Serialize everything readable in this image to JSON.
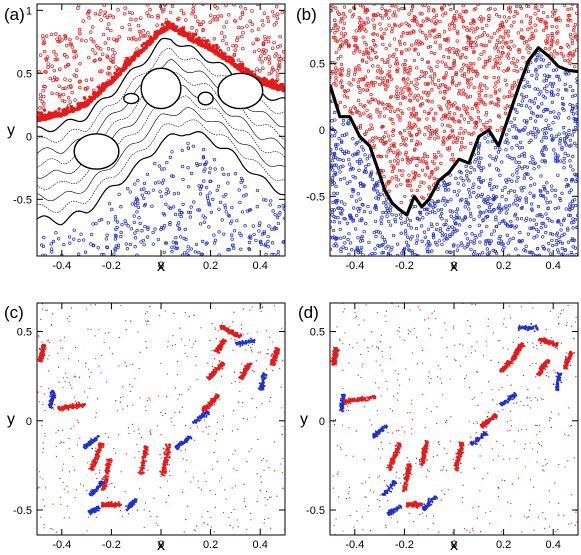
{
  "colors": {
    "red_series": "#e51a1a",
    "blue_series": "#1f2fd1",
    "black_curve": "#000000",
    "axis": "#000000"
  },
  "chart_data": [
    {
      "id": "a",
      "panel_label": "(a)",
      "type": "scatter",
      "xlabel": "x",
      "ylabel": "y",
      "xlim": [
        -0.5,
        0.5
      ],
      "ylim": [
        -0.95,
        1.05
      ],
      "xticks": [
        -0.4,
        -0.2,
        0,
        0.2,
        0.4
      ],
      "xtick_labels": [
        "-0.4",
        "-0.2",
        "0",
        "0.2",
        "0.4"
      ],
      "yticks": [
        -0.5,
        0,
        0.5,
        1
      ],
      "ytick_labels": [
        "-0.5",
        "0",
        "0.5",
        "1"
      ],
      "grid": false,
      "boundary_upper": {
        "x": [
          -0.5,
          -0.4,
          -0.3,
          -0.2,
          -0.1,
          0.0,
          0.04,
          0.1,
          0.2,
          0.3,
          0.4,
          0.5
        ],
        "y": [
          0.12,
          0.16,
          0.24,
          0.42,
          0.62,
          0.82,
          0.86,
          0.78,
          0.68,
          0.55,
          0.42,
          0.35
        ]
      },
      "boundary_lower": {
        "x": [
          -0.5,
          -0.4,
          -0.3,
          -0.2,
          -0.1,
          0.0,
          0.1,
          0.2,
          0.3,
          0.4,
          0.5
        ],
        "y": [
          -0.72,
          -0.74,
          -0.66,
          -0.48,
          -0.32,
          -0.12,
          -0.02,
          -0.08,
          -0.22,
          -0.4,
          -0.52
        ]
      },
      "islands": [
        {
          "cx": -0.26,
          "cy": -0.12,
          "rx": 0.09,
          "ry": 0.14
        },
        {
          "cx": 0.0,
          "cy": 0.38,
          "rx": 0.08,
          "ry": 0.16
        },
        {
          "cx": 0.32,
          "cy": 0.36,
          "rx": 0.09,
          "ry": 0.14
        },
        {
          "cx": -0.12,
          "cy": 0.3,
          "rx": 0.03,
          "ry": 0.04
        },
        {
          "cx": 0.18,
          "cy": 0.3,
          "rx": 0.03,
          "ry": 0.05
        }
      ],
      "series": [
        {
          "color": "#e51a1a",
          "region": "above"
        },
        {
          "color": "#1f2fd1",
          "region": "below"
        }
      ]
    },
    {
      "id": "b",
      "panel_label": "(b)",
      "type": "scatter",
      "xlabel": "x",
      "ylabel": "",
      "xlim": [
        -0.5,
        0.5
      ],
      "ylim": [
        -0.95,
        0.95
      ],
      "xticks": [
        -0.4,
        -0.2,
        0,
        0.2,
        0.4
      ],
      "xtick_labels": [
        "-0.4",
        "-0.2",
        "0",
        "0.2",
        "0.4"
      ],
      "yticks": [
        -0.5,
        0,
        0.5
      ],
      "ytick_labels": [
        "-0.5",
        "0",
        "0.5"
      ],
      "grid": false,
      "boundary": {
        "x": [
          -0.5,
          -0.46,
          -0.42,
          -0.38,
          -0.34,
          -0.31,
          -0.28,
          -0.25,
          -0.22,
          -0.19,
          -0.16,
          -0.13,
          -0.1,
          -0.06,
          -0.02,
          0.02,
          0.06,
          0.1,
          0.14,
          0.18,
          0.22,
          0.26,
          0.3,
          0.34,
          0.38,
          0.42,
          0.46,
          0.5
        ],
        "y": [
          0.34,
          0.1,
          0.1,
          -0.05,
          -0.12,
          -0.28,
          -0.45,
          -0.55,
          -0.6,
          -0.64,
          -0.5,
          -0.58,
          -0.52,
          -0.38,
          -0.32,
          -0.22,
          -0.25,
          -0.05,
          0.0,
          -0.12,
          0.1,
          0.32,
          0.52,
          0.62,
          0.56,
          0.48,
          0.45,
          0.44
        ]
      },
      "series": [
        {
          "color": "#e51a1a",
          "region": "above"
        },
        {
          "color": "#1f2fd1",
          "region": "below"
        }
      ]
    },
    {
      "id": "c",
      "panel_label": "(c)",
      "type": "scatter",
      "xlabel": "x",
      "ylabel": "y",
      "xlim": [
        -0.5,
        0.5
      ],
      "ylim": [
        -0.64,
        0.66
      ],
      "xticks": [
        -0.4,
        -0.2,
        0,
        0.2,
        0.4
      ],
      "xtick_labels": [
        "-0.4",
        "-0.2",
        "0",
        "0.2",
        "0.4"
      ],
      "yticks": [
        -0.5,
        0,
        0.5
      ],
      "ytick_labels": [
        "-0.5",
        "0",
        "0.5"
      ],
      "grid": false,
      "lobes": [
        {
          "cx": -0.48,
          "cy": 0.38,
          "len": 0.05,
          "angle": 80,
          "color": "#e51a1a"
        },
        {
          "cx": -0.44,
          "cy": 0.12,
          "len": 0.05,
          "angle": 80,
          "color": "#1f2fd1"
        },
        {
          "cx": -0.36,
          "cy": 0.08,
          "len": 0.07,
          "angle": 10,
          "color": "#e51a1a"
        },
        {
          "cx": -0.28,
          "cy": -0.12,
          "len": 0.05,
          "angle": 40,
          "color": "#1f2fd1"
        },
        {
          "cx": -0.26,
          "cy": -0.2,
          "len": 0.08,
          "angle": 70,
          "color": "#e51a1a"
        },
        {
          "cx": -0.22,
          "cy": -0.3,
          "len": 0.09,
          "angle": 80,
          "color": "#e51a1a"
        },
        {
          "cx": -0.26,
          "cy": -0.38,
          "len": 0.05,
          "angle": 50,
          "color": "#1f2fd1"
        },
        {
          "cx": -0.2,
          "cy": -0.47,
          "len": 0.05,
          "angle": 0,
          "color": "#e51a1a"
        },
        {
          "cx": -0.27,
          "cy": -0.5,
          "len": 0.03,
          "angle": 30,
          "color": "#1f2fd1"
        },
        {
          "cx": -0.12,
          "cy": -0.47,
          "len": 0.04,
          "angle": 50,
          "color": "#1f2fd1"
        },
        {
          "cx": -0.07,
          "cy": -0.22,
          "len": 0.08,
          "angle": 80,
          "color": "#e51a1a"
        },
        {
          "cx": 0.02,
          "cy": -0.22,
          "len": 0.09,
          "angle": 80,
          "color": "#e51a1a"
        },
        {
          "cx": 0.09,
          "cy": -0.12,
          "len": 0.05,
          "angle": 40,
          "color": "#1f2fd1"
        },
        {
          "cx": 0.16,
          "cy": 0.02,
          "len": 0.05,
          "angle": 40,
          "color": "#1f2fd1"
        },
        {
          "cx": 0.2,
          "cy": 0.1,
          "len": 0.06,
          "angle": 50,
          "color": "#e51a1a"
        },
        {
          "cx": 0.22,
          "cy": 0.28,
          "len": 0.06,
          "angle": 50,
          "color": "#e51a1a"
        },
        {
          "cx": 0.24,
          "cy": 0.42,
          "len": 0.04,
          "angle": 60,
          "color": "#e51a1a"
        },
        {
          "cx": 0.28,
          "cy": 0.5,
          "len": 0.06,
          "angle": -30,
          "color": "#e51a1a"
        },
        {
          "cx": 0.34,
          "cy": 0.44,
          "len": 0.05,
          "angle": 10,
          "color": "#1f2fd1"
        },
        {
          "cx": 0.34,
          "cy": 0.28,
          "len": 0.05,
          "angle": 60,
          "color": "#e51a1a"
        },
        {
          "cx": 0.41,
          "cy": 0.22,
          "len": 0.05,
          "angle": 80,
          "color": "#1f2fd1"
        },
        {
          "cx": 0.46,
          "cy": 0.36,
          "len": 0.05,
          "angle": 70,
          "color": "#e51a1a"
        }
      ]
    },
    {
      "id": "d",
      "panel_label": "(d)",
      "type": "scatter",
      "xlabel": "x",
      "ylabel": "y",
      "xlim": [
        -0.5,
        0.5
      ],
      "ylim": [
        -0.64,
        0.66
      ],
      "xticks": [
        -0.4,
        -0.2,
        0,
        0.2,
        0.4
      ],
      "xtick_labels": [
        "-0.4",
        "-0.2",
        "0",
        "0.2",
        "0.4"
      ],
      "yticks": [
        -0.5,
        0,
        0.5
      ],
      "ytick_labels": [
        "-0.5",
        "0",
        "0.5"
      ],
      "grid": false,
      "lobes": [
        {
          "cx": -0.48,
          "cy": 0.36,
          "len": 0.05,
          "angle": 80,
          "color": "#e51a1a"
        },
        {
          "cx": -0.45,
          "cy": 0.1,
          "len": 0.05,
          "angle": 80,
          "color": "#1f2fd1"
        },
        {
          "cx": -0.38,
          "cy": 0.12,
          "len": 0.08,
          "angle": 10,
          "color": "#e51a1a"
        },
        {
          "cx": -0.3,
          "cy": -0.06,
          "len": 0.05,
          "angle": 40,
          "color": "#1f2fd1"
        },
        {
          "cx": -0.24,
          "cy": -0.2,
          "len": 0.08,
          "angle": 70,
          "color": "#e51a1a"
        },
        {
          "cx": -0.19,
          "cy": -0.32,
          "len": 0.08,
          "angle": 80,
          "color": "#e51a1a"
        },
        {
          "cx": -0.26,
          "cy": -0.38,
          "len": 0.05,
          "angle": 50,
          "color": "#1f2fd1"
        },
        {
          "cx": -0.16,
          "cy": -0.47,
          "len": 0.04,
          "angle": 0,
          "color": "#e51a1a"
        },
        {
          "cx": -0.24,
          "cy": -0.5,
          "len": 0.04,
          "angle": 30,
          "color": "#1f2fd1"
        },
        {
          "cx": -0.1,
          "cy": -0.46,
          "len": 0.05,
          "angle": 50,
          "color": "#1f2fd1"
        },
        {
          "cx": -0.12,
          "cy": -0.18,
          "len": 0.07,
          "angle": 80,
          "color": "#e51a1a"
        },
        {
          "cx": 0.02,
          "cy": -0.2,
          "len": 0.08,
          "angle": 80,
          "color": "#e51a1a"
        },
        {
          "cx": 0.1,
          "cy": -0.1,
          "len": 0.05,
          "angle": 40,
          "color": "#1f2fd1"
        },
        {
          "cx": 0.14,
          "cy": 0.0,
          "len": 0.05,
          "angle": 40,
          "color": "#e51a1a"
        },
        {
          "cx": 0.22,
          "cy": 0.12,
          "len": 0.05,
          "angle": 40,
          "color": "#1f2fd1"
        },
        {
          "cx": 0.22,
          "cy": 0.32,
          "len": 0.06,
          "angle": 50,
          "color": "#e51a1a"
        },
        {
          "cx": 0.26,
          "cy": 0.4,
          "len": 0.04,
          "angle": 60,
          "color": "#e51a1a"
        },
        {
          "cx": 0.3,
          "cy": 0.52,
          "len": 0.05,
          "angle": 0,
          "color": "#1f2fd1"
        },
        {
          "cx": 0.38,
          "cy": 0.44,
          "len": 0.05,
          "angle": -20,
          "color": "#e51a1a"
        },
        {
          "cx": 0.36,
          "cy": 0.3,
          "len": 0.05,
          "angle": 60,
          "color": "#e51a1a"
        },
        {
          "cx": 0.42,
          "cy": 0.22,
          "len": 0.05,
          "angle": 80,
          "color": "#1f2fd1"
        },
        {
          "cx": 0.46,
          "cy": 0.34,
          "len": 0.05,
          "angle": 70,
          "color": "#e51a1a"
        }
      ]
    }
  ]
}
